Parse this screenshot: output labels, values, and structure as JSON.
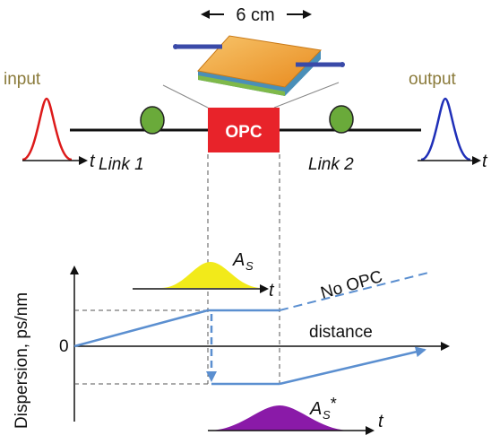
{
  "chip": {
    "length_label": "6 cm"
  },
  "input_label": "input",
  "output_label": "output",
  "opc_label": "OPC",
  "link1_label": "Link 1",
  "link2_label": "Link 2",
  "time_axis_label": "t",
  "graph": {
    "ylabel": "Dispersion, ps/nm",
    "zero_label": "0",
    "xlabel": "distance",
    "no_opc_label": "No OPC",
    "pulse_top_label": "A",
    "pulse_top_sub": "S",
    "pulse_bottom_label": "A",
    "pulse_bottom_sub": "S",
    "pulse_bottom_sup": "*"
  },
  "colors": {
    "input_pulse": "#dd1a1a",
    "output_pulse": "#1f2fb8",
    "opc_box": "#e8232a",
    "link_coil": "#6aaa3a",
    "label_olive": "#8a7a3a",
    "dispersion_line": "#5b8fd0",
    "pulse_yellow": "#f2ea1a",
    "pulse_purple": "#8a1aa8"
  }
}
